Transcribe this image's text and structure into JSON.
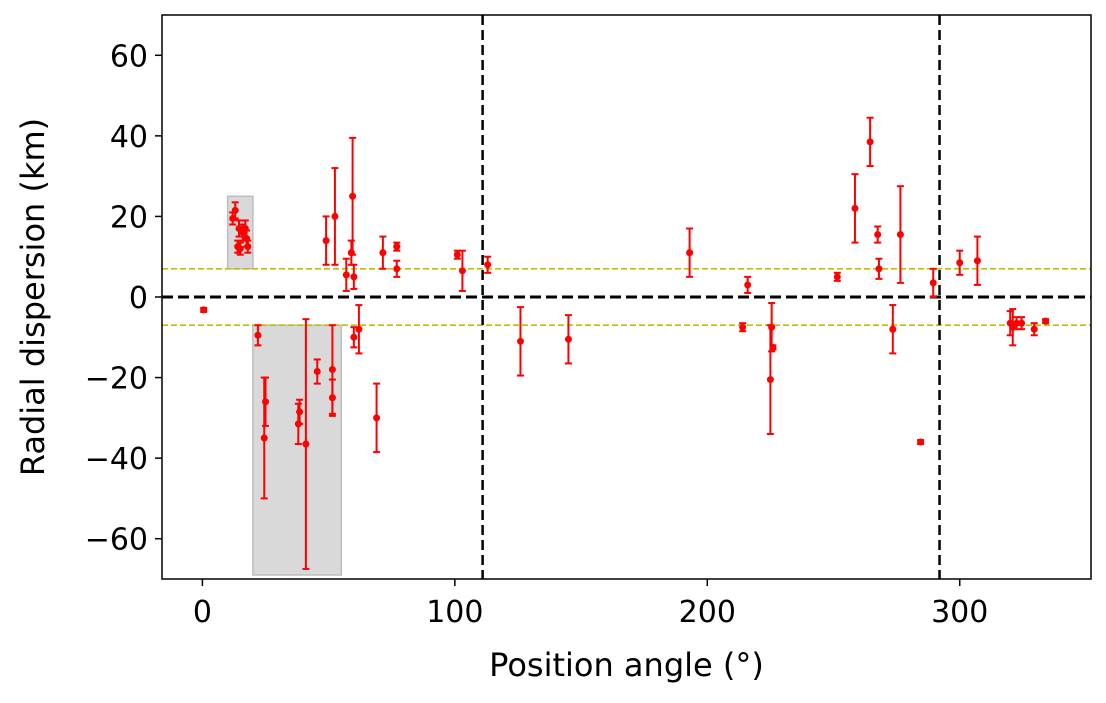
{
  "chart_data": {
    "type": "scatter",
    "title": "",
    "xlabel": "Position angle (°)",
    "ylabel": "Radial dispersion (km)",
    "xlim": [
      -16,
      352
    ],
    "ylim": [
      -70,
      70
    ],
    "xticks": [
      0,
      100,
      200,
      300
    ],
    "xtick_labels": [
      "0",
      "100",
      "200",
      "300"
    ],
    "yticks": [
      60,
      40,
      20,
      0,
      -20,
      -40,
      -60
    ],
    "ytick_labels": [
      "60",
      "40",
      "20",
      "0",
      "−20",
      "−40",
      "−60"
    ],
    "grid": false,
    "colors": {
      "points": "#ff0000",
      "zero_line": "#000000",
      "vertical_lines": "#000000",
      "threshold_lines": "#bfbf00",
      "shaded_regions": "#d9d9d9"
    },
    "vertical_lines": [
      111,
      292
    ],
    "threshold_lines": [
      7,
      -7
    ],
    "shaded_regions": [
      {
        "x": [
          10,
          20
        ],
        "y": [
          7,
          25
        ]
      },
      {
        "x": [
          20,
          55
        ],
        "y": [
          -69,
          -7
        ]
      }
    ],
    "points": [
      {
        "x": 0.5,
        "y": -3.2,
        "err": 0.5
      },
      {
        "x": 12,
        "y": 19.5,
        "err": 1.5
      },
      {
        "x": 13,
        "y": 21.5,
        "err": 2
      },
      {
        "x": 14,
        "y": 12.5,
        "err": 1.5
      },
      {
        "x": 14.5,
        "y": 17,
        "err": 2
      },
      {
        "x": 15,
        "y": 12,
        "err": 1.5
      },
      {
        "x": 16,
        "y": 16,
        "err": 2
      },
      {
        "x": 17,
        "y": 17,
        "err": 2
      },
      {
        "x": 17.5,
        "y": 14.5,
        "err": 2
      },
      {
        "x": 18,
        "y": 12.5,
        "err": 1.5
      },
      {
        "x": 22,
        "y": -9.5,
        "err": 2.5
      },
      {
        "x": 24.5,
        "y": -35,
        "err": 15
      },
      {
        "x": 25,
        "y": -26,
        "err": 6
      },
      {
        "x": 38,
        "y": -31.5,
        "err": 5
      },
      {
        "x": 38.5,
        "y": -28.5,
        "err": 3
      },
      {
        "x": 41,
        "y": -36.5,
        "err": 31
      },
      {
        "x": 45.5,
        "y": -18.5,
        "err": 3
      },
      {
        "x": 49,
        "y": 14,
        "err": 6
      },
      {
        "x": 51.5,
        "y": -25,
        "err": 4.5
      },
      {
        "x": 51.5,
        "y": -18,
        "err": 11
      },
      {
        "x": 52.5,
        "y": 20,
        "err": 12
      },
      {
        "x": 57,
        "y": 5.5,
        "err": 4
      },
      {
        "x": 59,
        "y": 11,
        "err": 3
      },
      {
        "x": 59.5,
        "y": 25,
        "err": 14.5
      },
      {
        "x": 60,
        "y": -10,
        "err": 2.5
      },
      {
        "x": 60,
        "y": 5,
        "err": 3
      },
      {
        "x": 62,
        "y": -8,
        "err": 6
      },
      {
        "x": 69,
        "y": -30,
        "err": 8.5
      },
      {
        "x": 71.5,
        "y": 11,
        "err": 4
      },
      {
        "x": 77,
        "y": 7,
        "err": 2
      },
      {
        "x": 77,
        "y": 12.5,
        "err": 1
      },
      {
        "x": 101,
        "y": 10.5,
        "err": 1
      },
      {
        "x": 103,
        "y": 6.5,
        "err": 5
      },
      {
        "x": 113,
        "y": 8,
        "err": 2
      },
      {
        "x": 126,
        "y": -11,
        "err": 8.5
      },
      {
        "x": 145,
        "y": -10.5,
        "err": 6
      },
      {
        "x": 193,
        "y": 11,
        "err": 6
      },
      {
        "x": 214,
        "y": -7.5,
        "err": 1
      },
      {
        "x": 216,
        "y": 3,
        "err": 2
      },
      {
        "x": 225,
        "y": -20.5,
        "err": 13.5
      },
      {
        "x": 225.5,
        "y": -7.5,
        "err": 6
      },
      {
        "x": 226,
        "y": -12.5,
        "err": 0.5
      },
      {
        "x": 251.5,
        "y": 5,
        "err": 1
      },
      {
        "x": 258.5,
        "y": 22,
        "err": 8.5
      },
      {
        "x": 264.5,
        "y": 38.5,
        "err": 6
      },
      {
        "x": 267.5,
        "y": 15.5,
        "err": 2
      },
      {
        "x": 268,
        "y": 7,
        "err": 2.5
      },
      {
        "x": 273.5,
        "y": -8,
        "err": 6
      },
      {
        "x": 276.5,
        "y": 15.5,
        "err": 12
      },
      {
        "x": 284.5,
        "y": -36,
        "err": 0.5
      },
      {
        "x": 289.5,
        "y": 3.5,
        "err": 3.5
      },
      {
        "x": 300,
        "y": 8.5,
        "err": 3
      },
      {
        "x": 307,
        "y": 9,
        "err": 6
      },
      {
        "x": 320,
        "y": -6.5,
        "err": 3
      },
      {
        "x": 321,
        "y": -7.5,
        "err": 4.5
      },
      {
        "x": 322.5,
        "y": -6.5,
        "err": 1.5
      },
      {
        "x": 324.5,
        "y": -6.5,
        "err": 1.5
      },
      {
        "x": 329.5,
        "y": -8,
        "err": 1.5
      },
      {
        "x": 334,
        "y": -6,
        "err": 0.5
      }
    ]
  }
}
